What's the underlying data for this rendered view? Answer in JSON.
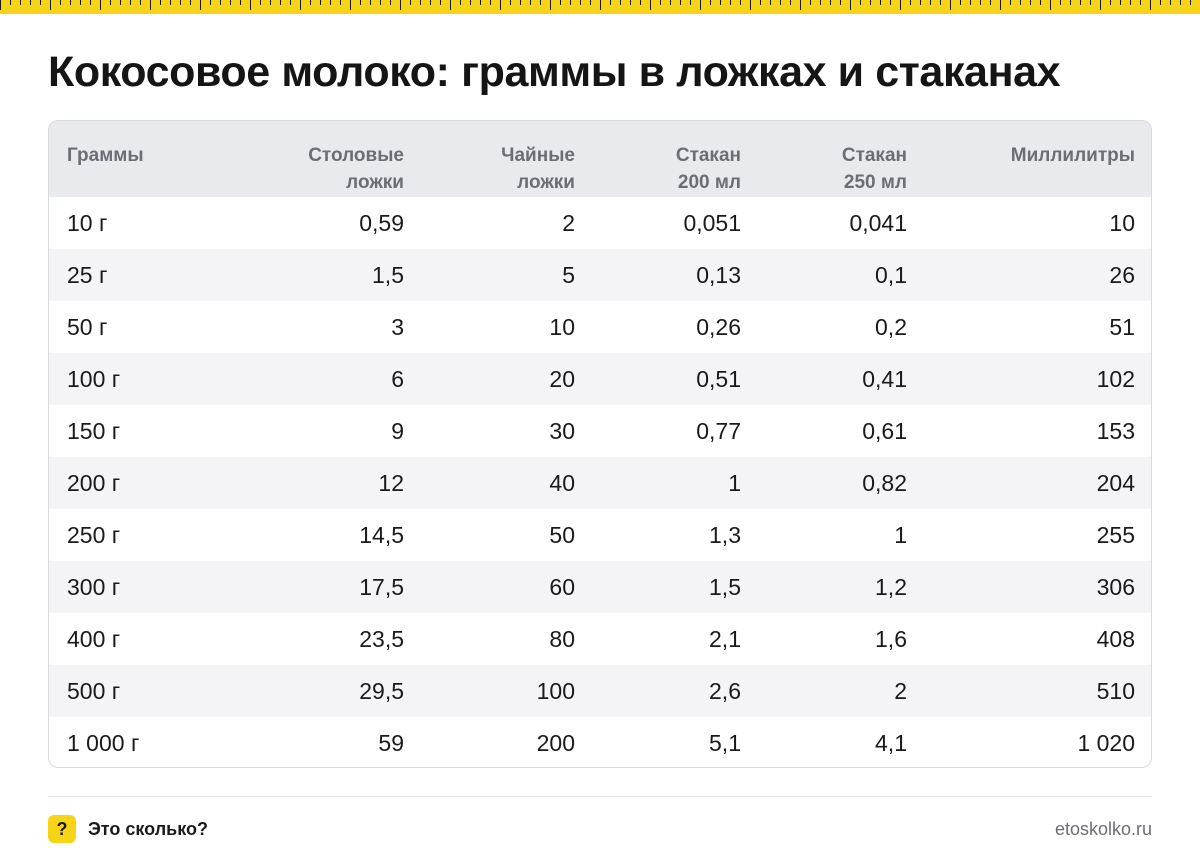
{
  "title": "Кокосовое молоко: граммы в ложках и стаканах",
  "table": {
    "headers": [
      [
        "Граммы"
      ],
      [
        "Столовые",
        "ложки"
      ],
      [
        "Чайные",
        "ложки"
      ],
      [
        "Стакан",
        "200 мл"
      ],
      [
        "Стакан",
        "250 мл"
      ],
      [
        "Миллилитры"
      ]
    ],
    "rows": [
      [
        "10 г",
        "0,59",
        "2",
        "0,051",
        "0,041",
        "10"
      ],
      [
        "25 г",
        "1,5",
        "5",
        "0,13",
        "0,1",
        "26"
      ],
      [
        "50 г",
        "3",
        "10",
        "0,26",
        "0,2",
        "51"
      ],
      [
        "100 г",
        "6",
        "20",
        "0,51",
        "0,41",
        "102"
      ],
      [
        "150 г",
        "9",
        "30",
        "0,77",
        "0,61",
        "153"
      ],
      [
        "200 г",
        "12",
        "40",
        "1",
        "0,82",
        "204"
      ],
      [
        "250 г",
        "14,5",
        "50",
        "1,3",
        "1",
        "255"
      ],
      [
        "300 г",
        "17,5",
        "60",
        "1,5",
        "1,2",
        "306"
      ],
      [
        "400 г",
        "23,5",
        "80",
        "2,1",
        "1,6",
        "408"
      ],
      [
        "500 г",
        "29,5",
        "100",
        "2,6",
        "2",
        "510"
      ],
      [
        "1 000 г",
        "59",
        "200",
        "5,1",
        "4,1",
        "1 020"
      ]
    ]
  },
  "footer": {
    "logo_mark": "?",
    "logo_text": "Это сколько?",
    "site": "etoskolko.ru"
  },
  "colors": {
    "accent": "#f7d417",
    "header_bg": "#e9eaed",
    "row_alt_bg": "#f4f4f6",
    "header_text": "#6c6e75"
  }
}
